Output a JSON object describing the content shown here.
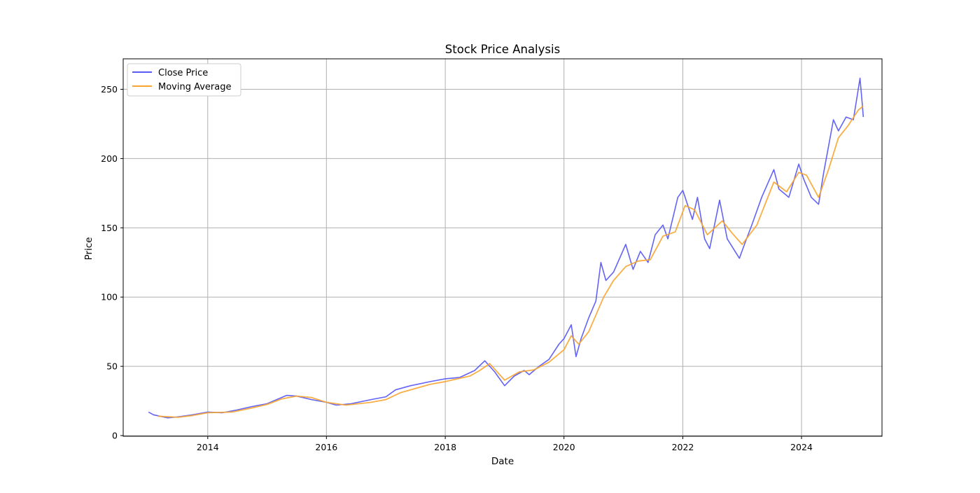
{
  "chart_data": {
    "type": "line",
    "title": "Stock Price Analysis",
    "xlabel": "Date",
    "ylabel": "Price",
    "x_range": [
      "2012-07-30",
      "2025-05-10"
    ],
    "ylim": [
      -0.5,
      272
    ],
    "x_ticks": [
      {
        "date": "2014-01-01",
        "label": "2014"
      },
      {
        "date": "2016-01-01",
        "label": "2016"
      },
      {
        "date": "2018-01-01",
        "label": "2018"
      },
      {
        "date": "2020-01-01",
        "label": "2020"
      },
      {
        "date": "2022-01-01",
        "label": "2022"
      },
      {
        "date": "2024-01-01",
        "label": "2024"
      }
    ],
    "y_ticks": [
      0,
      50,
      100,
      150,
      200,
      250
    ],
    "grid": true,
    "legend_position": "top-left",
    "series": [
      {
        "name": "Close Price",
        "color": "#5b5bf5",
        "points": [
          [
            "2013-01-02",
            17.0
          ],
          [
            "2013-02-01",
            15.0
          ],
          [
            "2013-04-01",
            13.5
          ],
          [
            "2013-05-01",
            12.8
          ],
          [
            "2013-07-01",
            13.5
          ],
          [
            "2013-10-01",
            15.0
          ],
          [
            "2014-01-01",
            17.0
          ],
          [
            "2014-04-01",
            16.5
          ],
          [
            "2014-07-01",
            18.5
          ],
          [
            "2014-10-01",
            21.0
          ],
          [
            "2015-01-01",
            23.0
          ],
          [
            "2015-03-01",
            26.0
          ],
          [
            "2015-05-01",
            29.0
          ],
          [
            "2015-07-01",
            28.5
          ],
          [
            "2015-10-01",
            26.0
          ],
          [
            "2016-01-01",
            24.0
          ],
          [
            "2016-03-01",
            22.0
          ],
          [
            "2016-06-01",
            23.0
          ],
          [
            "2016-10-01",
            26.0
          ],
          [
            "2017-01-01",
            28.0
          ],
          [
            "2017-03-01",
            33.0
          ],
          [
            "2017-06-01",
            36.0
          ],
          [
            "2017-10-01",
            39.0
          ],
          [
            "2018-01-01",
            41.0
          ],
          [
            "2018-04-01",
            42.0
          ],
          [
            "2018-07-01",
            47.0
          ],
          [
            "2018-09-01",
            54.0
          ],
          [
            "2018-11-01",
            46.0
          ],
          [
            "2019-01-01",
            36.0
          ],
          [
            "2019-03-01",
            43.0
          ],
          [
            "2019-05-01",
            47.0
          ],
          [
            "2019-06-01",
            44.0
          ],
          [
            "2019-08-01",
            50.0
          ],
          [
            "2019-10-01",
            55.0
          ],
          [
            "2019-12-01",
            66.0
          ],
          [
            "2020-01-01",
            70.0
          ],
          [
            "2020-02-15",
            80.0
          ],
          [
            "2020-03-15",
            57.0
          ],
          [
            "2020-04-15",
            70.0
          ],
          [
            "2020-06-01",
            85.0
          ],
          [
            "2020-07-15",
            97.0
          ],
          [
            "2020-08-15",
            125.0
          ],
          [
            "2020-09-15",
            112.0
          ],
          [
            "2020-11-01",
            118.0
          ],
          [
            "2021-01-15",
            138.0
          ],
          [
            "2021-03-01",
            120.0
          ],
          [
            "2021-04-15",
            133.0
          ],
          [
            "2021-06-01",
            125.0
          ],
          [
            "2021-07-15",
            145.0
          ],
          [
            "2021-09-01",
            152.0
          ],
          [
            "2021-10-01",
            142.0
          ],
          [
            "2021-12-01",
            172.0
          ],
          [
            "2022-01-01",
            177.0
          ],
          [
            "2022-03-01",
            156.0
          ],
          [
            "2022-04-01",
            172.0
          ],
          [
            "2022-05-15",
            142.0
          ],
          [
            "2022-06-15",
            135.0
          ],
          [
            "2022-08-15",
            170.0
          ],
          [
            "2022-10-01",
            142.0
          ],
          [
            "2022-12-15",
            128.0
          ],
          [
            "2023-01-15",
            138.0
          ],
          [
            "2023-03-01",
            152.0
          ],
          [
            "2023-05-01",
            172.0
          ],
          [
            "2023-07-15",
            192.0
          ],
          [
            "2023-08-15",
            178.0
          ],
          [
            "2023-10-15",
            172.0
          ],
          [
            "2023-12-15",
            196.0
          ],
          [
            "2024-01-15",
            185.0
          ],
          [
            "2024-03-01",
            172.0
          ],
          [
            "2024-04-15",
            167.0
          ],
          [
            "2024-05-15",
            189.0
          ],
          [
            "2024-07-15",
            228.0
          ],
          [
            "2024-08-15",
            220.0
          ],
          [
            "2024-10-01",
            230.0
          ],
          [
            "2024-11-15",
            228.0
          ],
          [
            "2024-12-26",
            258.0
          ],
          [
            "2025-01-08",
            240.0
          ],
          [
            "2025-01-15",
            230.0
          ]
        ]
      },
      {
        "name": "Moving Average",
        "color": "#f7a530",
        "points": [
          [
            "2013-03-01",
            14.0
          ],
          [
            "2013-07-01",
            13.2
          ],
          [
            "2013-10-01",
            14.5
          ],
          [
            "2014-01-01",
            16.5
          ],
          [
            "2014-06-01",
            17.0
          ],
          [
            "2014-10-01",
            20.0
          ],
          [
            "2015-01-01",
            22.5
          ],
          [
            "2015-04-01",
            26.5
          ],
          [
            "2015-07-01",
            28.5
          ],
          [
            "2015-10-01",
            27.5
          ],
          [
            "2016-01-01",
            24.0
          ],
          [
            "2016-05-01",
            22.0
          ],
          [
            "2016-10-01",
            24.0
          ],
          [
            "2017-01-01",
            26.0
          ],
          [
            "2017-04-01",
            31.0
          ],
          [
            "2017-07-01",
            34.0
          ],
          [
            "2017-10-01",
            37.0
          ],
          [
            "2018-01-01",
            39.0
          ],
          [
            "2018-06-01",
            43.0
          ],
          [
            "2018-08-01",
            47.0
          ],
          [
            "2018-10-01",
            52.0
          ],
          [
            "2019-01-01",
            40.0
          ],
          [
            "2019-04-01",
            46.0
          ],
          [
            "2019-07-01",
            47.5
          ],
          [
            "2019-10-01",
            53.0
          ],
          [
            "2020-01-01",
            62.0
          ],
          [
            "2020-02-15",
            72.0
          ],
          [
            "2020-04-01",
            66.0
          ],
          [
            "2020-06-01",
            75.0
          ],
          [
            "2020-09-01",
            100.0
          ],
          [
            "2020-11-01",
            112.0
          ],
          [
            "2021-01-15",
            122.0
          ],
          [
            "2021-04-01",
            126.0
          ],
          [
            "2021-06-15",
            127.0
          ],
          [
            "2021-09-01",
            144.0
          ],
          [
            "2021-11-15",
            147.0
          ],
          [
            "2022-01-15",
            166.0
          ],
          [
            "2022-03-15",
            163.0
          ],
          [
            "2022-06-01",
            145.0
          ],
          [
            "2022-09-01",
            155.0
          ],
          [
            "2022-11-01",
            146.0
          ],
          [
            "2023-01-01",
            138.0
          ],
          [
            "2023-04-01",
            152.0
          ],
          [
            "2023-07-15",
            183.0
          ],
          [
            "2023-10-01",
            176.0
          ],
          [
            "2023-12-15",
            190.0
          ],
          [
            "2024-02-01",
            188.0
          ],
          [
            "2024-04-15",
            172.0
          ],
          [
            "2024-06-15",
            192.0
          ],
          [
            "2024-08-15",
            215.0
          ],
          [
            "2024-10-15",
            224.0
          ],
          [
            "2024-12-15",
            235.0
          ],
          [
            "2025-01-15",
            238.0
          ]
        ]
      }
    ]
  }
}
